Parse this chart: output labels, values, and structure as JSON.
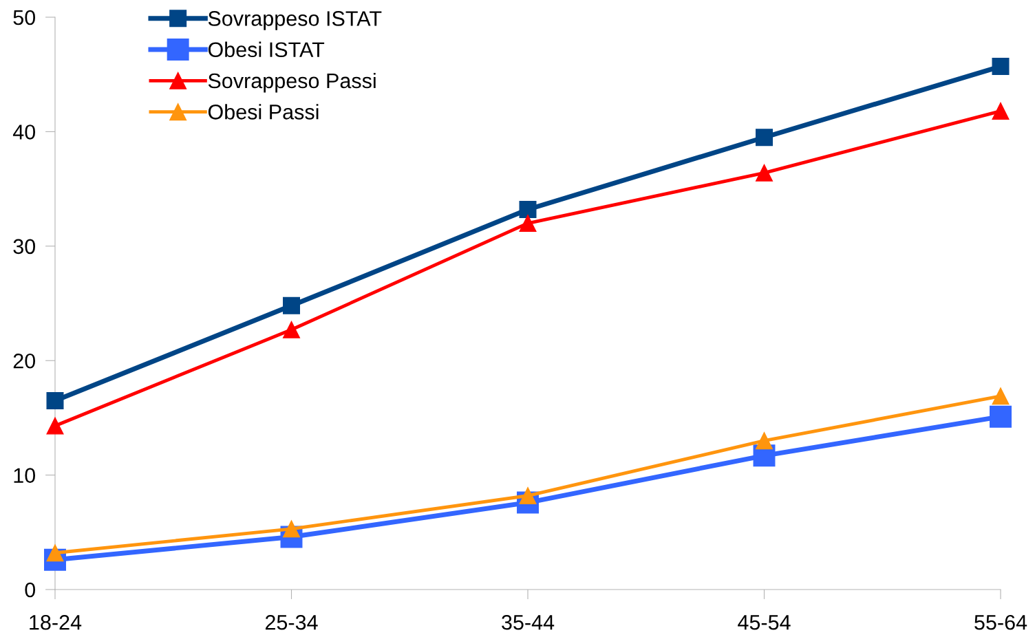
{
  "chart_data": {
    "type": "line",
    "categories": [
      "18-24",
      "25-34",
      "35-44",
      "45-54",
      "55-64"
    ],
    "series": [
      {
        "name": "Sovrappeso ISTAT",
        "color": "#004586",
        "marker": "square",
        "values": [
          16.5,
          24.8,
          33.2,
          39.5,
          45.7
        ]
      },
      {
        "name": "Obesi ISTAT",
        "color": "#3366ff",
        "marker": "square",
        "values": [
          2.6,
          4.6,
          7.6,
          11.7,
          15.1
        ]
      },
      {
        "name": "Sovrappeso Passi",
        "color": "#ff0000",
        "marker": "triangle",
        "values": [
          14.3,
          22.7,
          32.0,
          36.4,
          41.8
        ]
      },
      {
        "name": "Obesi Passi",
        "color": "#ff950e",
        "marker": "triangle",
        "values": [
          3.2,
          5.3,
          8.2,
          13.0,
          16.9
        ]
      }
    ],
    "ylim": [
      0,
      50
    ],
    "yticks": [
      0,
      10,
      20,
      30,
      40,
      50
    ],
    "grid": false,
    "legend": "top left",
    "line_style": "solid"
  }
}
